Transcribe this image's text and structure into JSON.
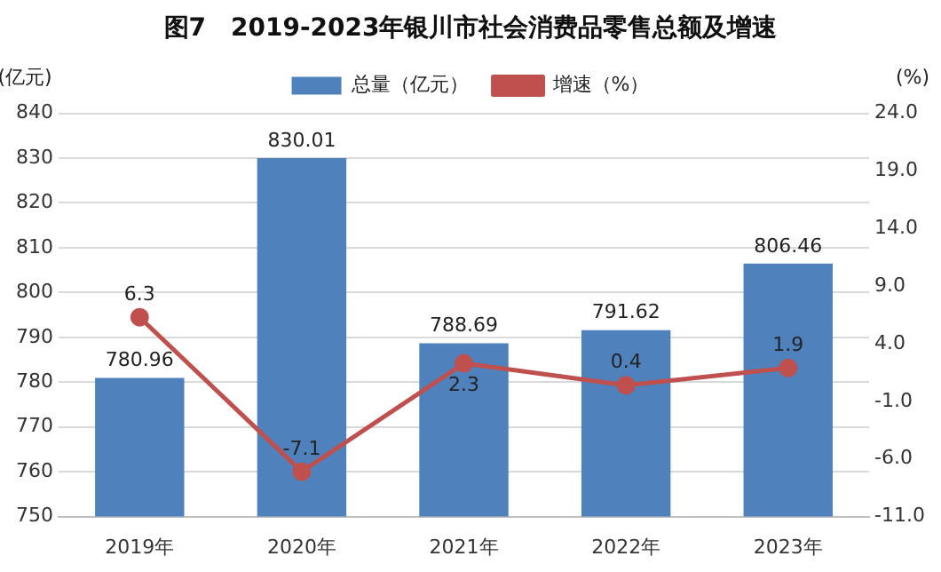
{
  "chart_data": {
    "type": "bar",
    "title": "图7　2019-2023年银川市社会消费品零售总额及增速",
    "ylabel": "(亿元)",
    "y2label": "(%)",
    "categories": [
      "2019年",
      "2020年",
      "2021年",
      "2022年",
      "2023年"
    ],
    "series": [
      {
        "name": "总量（亿元）",
        "color": "#4f81bd",
        "values": [
          780.96,
          830.01,
          788.69,
          791.62,
          806.46
        ]
      },
      {
        "name": "增速（%）",
        "type": "line",
        "axis": "y2",
        "color": "#c0504d",
        "marker": "circle",
        "values": [
          6.3,
          -7.1,
          2.3,
          0.4,
          1.9
        ]
      }
    ],
    "ylim": [
      750,
      840
    ],
    "yticks": [
      750,
      760,
      770,
      780,
      790,
      800,
      810,
      820,
      830,
      840
    ],
    "y2lim": [
      -11,
      24
    ],
    "y2ticks": [
      {
        "value": -11,
        "label": "-11.0"
      },
      {
        "value": -6,
        "label": "-6.0"
      },
      {
        "value": -1,
        "label": "-1.0"
      },
      {
        "value": 4,
        "label": "4.0"
      },
      {
        "value": 9,
        "label": "9.0"
      },
      {
        "value": 14,
        "label": "14.0"
      },
      {
        "value": 19,
        "label": "19.0"
      },
      {
        "value": 24,
        "label": "24.0"
      }
    ],
    "grid": "y",
    "legend": "top",
    "data_labels": true
  }
}
